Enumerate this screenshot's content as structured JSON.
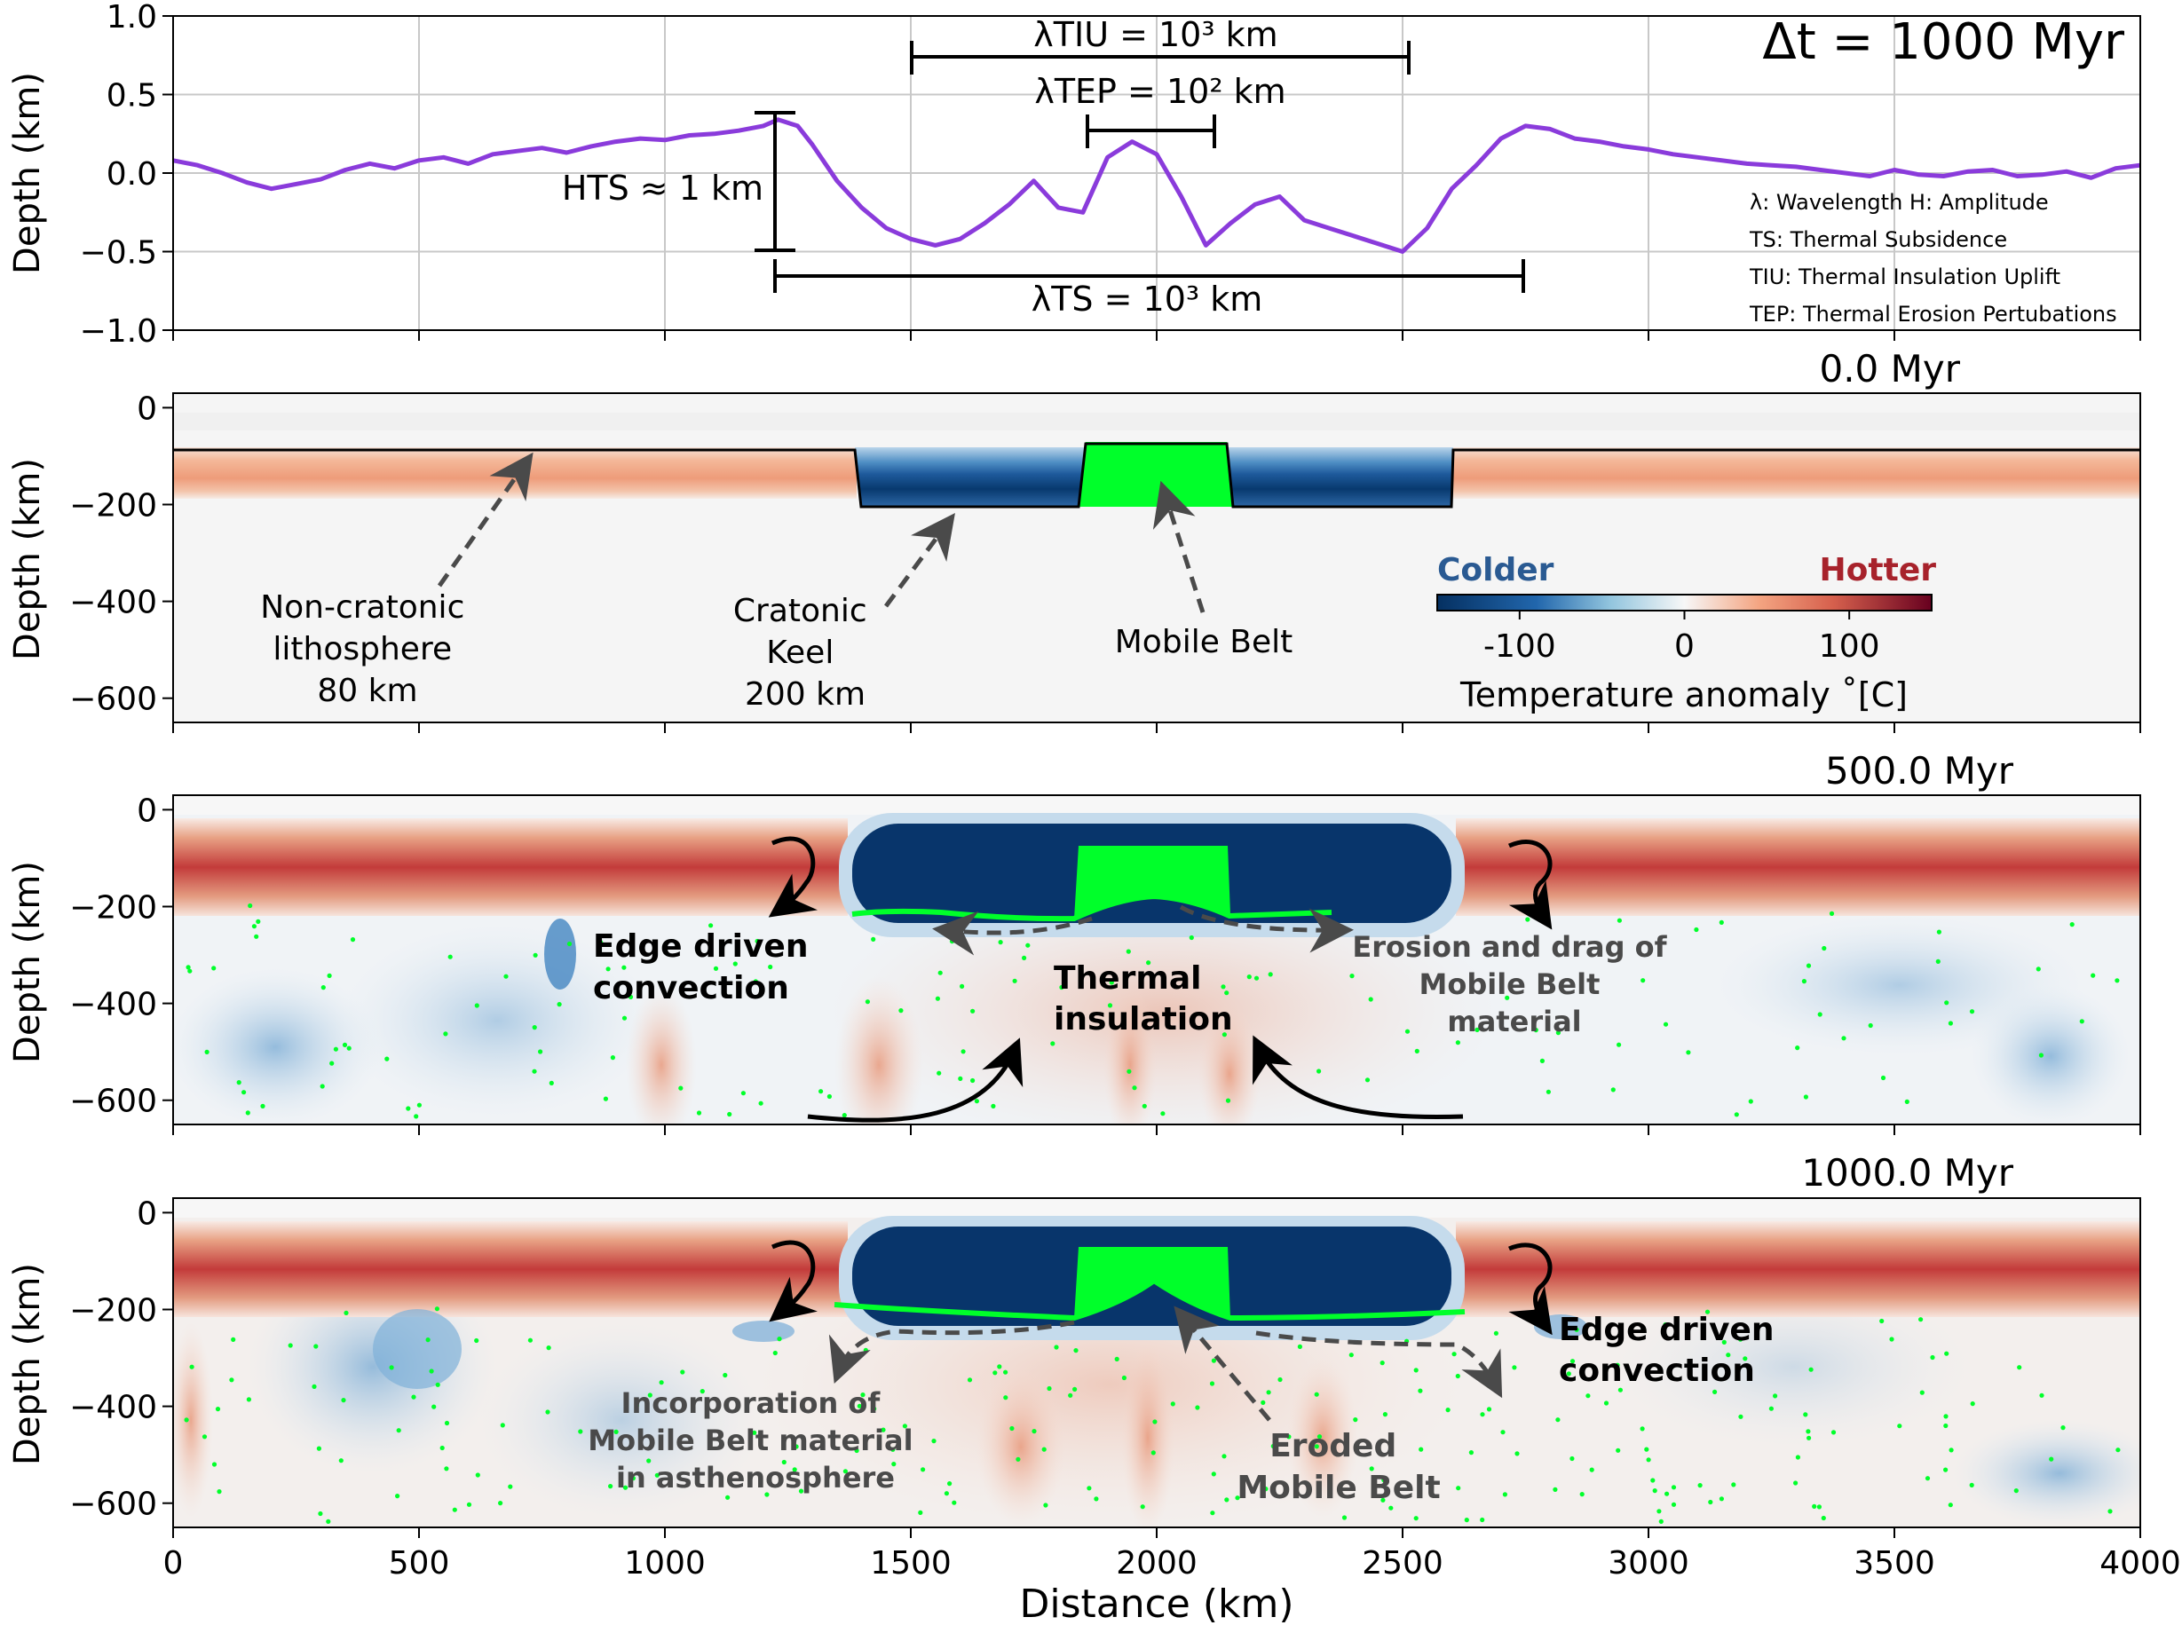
{
  "chart_data": [
    {
      "type": "line",
      "xlim": [
        0,
        4000
      ],
      "ylim": [
        -1.0,
        1.0
      ],
      "ylabel": "Depth (km)",
      "yticks": [
        1.0,
        0.5,
        0.0,
        -0.5,
        -1.0
      ],
      "ytick_labels": [
        "1.0",
        "0.5",
        "0.0",
        "−0.5",
        "−1.0"
      ],
      "xticks": [
        0,
        500,
        1000,
        1500,
        2000,
        2500,
        3000,
        3500,
        4000
      ],
      "grid": true,
      "line_color": "#8a3bdb",
      "x": [
        0,
        50,
        100,
        150,
        200,
        250,
        300,
        350,
        400,
        450,
        500,
        550,
        600,
        650,
        700,
        750,
        800,
        850,
        900,
        950,
        1000,
        1050,
        1100,
        1150,
        1200,
        1230,
        1270,
        1300,
        1350,
        1400,
        1450,
        1500,
        1550,
        1600,
        1650,
        1700,
        1750,
        1800,
        1850,
        1900,
        1950,
        2000,
        2050,
        2100,
        2150,
        2200,
        2250,
        2300,
        2350,
        2400,
        2450,
        2500,
        2550,
        2600,
        2650,
        2700,
        2750,
        2800,
        2850,
        2900,
        2950,
        3000,
        3050,
        3100,
        3150,
        3200,
        3250,
        3300,
        3350,
        3400,
        3450,
        3500,
        3550,
        3600,
        3650,
        3700,
        3750,
        3800,
        3850,
        3900,
        3950,
        4000
      ],
      "y": [
        0.08,
        0.05,
        0.0,
        -0.06,
        -0.1,
        -0.07,
        -0.04,
        0.02,
        0.06,
        0.03,
        0.08,
        0.1,
        0.06,
        0.12,
        0.14,
        0.16,
        0.13,
        0.17,
        0.2,
        0.22,
        0.21,
        0.24,
        0.25,
        0.27,
        0.3,
        0.34,
        0.3,
        0.18,
        -0.05,
        -0.22,
        -0.35,
        -0.42,
        -0.46,
        -0.42,
        -0.32,
        -0.2,
        -0.05,
        -0.22,
        -0.25,
        0.1,
        0.2,
        0.12,
        -0.15,
        -0.46,
        -0.32,
        -0.2,
        -0.15,
        -0.3,
        -0.35,
        -0.4,
        -0.45,
        -0.5,
        -0.35,
        -0.1,
        0.05,
        0.22,
        0.3,
        0.28,
        0.22,
        0.2,
        0.17,
        0.15,
        0.12,
        0.1,
        0.08,
        0.06,
        0.05,
        0.04,
        0.02,
        0.0,
        -0.02,
        0.02,
        -0.01,
        -0.02,
        0.01,
        0.02,
        -0.02,
        -0.01,
        0.01,
        -0.03,
        0.03,
        0.05
      ],
      "annotations": {
        "timestep": "Δt = 1000 Myr",
        "lambda_tiu": "λTIU = 10³ km",
        "lambda_tep": "λTEP = 10² km",
        "h_ts": "HTS ≈ 1 km",
        "lambda_ts": "λTS = 10³ km",
        "legend_lines": [
          "λ: Wavelength H: Amplitude",
          "TS: Thermal Subsidence",
          "TIU: Thermal Insulation Uplift",
          "TEP: Thermal Erosion Pertubations"
        ]
      }
    },
    {
      "type": "heatmap",
      "title": "0.0 Myr",
      "xlim": [
        0,
        4000
      ],
      "ylim": [
        -650,
        30
      ],
      "ylabel": "Depth (km)",
      "yticks": [
        0,
        -200,
        -400,
        -600
      ],
      "ytick_labels": [
        "0",
        "−200",
        "−400",
        "−600"
      ],
      "annotations": [
        "Non-cratonic\nlithosphere\n80 km",
        "Cratonic\nKeel\n200 km",
        "Mobile Belt"
      ],
      "colorbar": {
        "label": "Temperature anomaly ˚[C]",
        "cold_label": "Colder",
        "hot_label": "Hotter",
        "ticks": [
          -100,
          0,
          100
        ],
        "tick_labels": [
          "-100",
          "0",
          "100"
        ],
        "range": [
          -150,
          150
        ],
        "cold_color": "#2a5a92",
        "hot_color": "#a7222b"
      }
    },
    {
      "type": "heatmap",
      "title": "500.0 Myr",
      "xlim": [
        0,
        4000
      ],
      "ylim": [
        -650,
        30
      ],
      "ylabel": "Depth (km)",
      "yticks": [
        0,
        -200,
        -400,
        -600
      ],
      "ytick_labels": [
        "0",
        "−200",
        "−400",
        "−600"
      ],
      "annotations": [
        "Edge driven\nconvection",
        "Thermal\ninsulation",
        "Erosion and drag of\nMobile Belt\nmaterial"
      ]
    },
    {
      "type": "heatmap",
      "title": "1000.0 Myr",
      "xlim": [
        0,
        4000
      ],
      "ylim": [
        -650,
        30
      ],
      "ylabel": "Depth (km)",
      "xlabel": "Distance (km)",
      "yticks": [
        0,
        -200,
        -400,
        -600
      ],
      "ytick_labels": [
        "0",
        "−200",
        "−400",
        "−600"
      ],
      "xticks": [
        0,
        500,
        1000,
        1500,
        2000,
        2500,
        3000,
        3500,
        4000
      ],
      "xtick_labels": [
        "0",
        "500",
        "1000",
        "1500",
        "2000",
        "2500",
        "3000",
        "3500",
        "4000"
      ],
      "annotations": [
        "Incorporation of\nMobile Belt material\nin asthenosphere",
        "Eroded\nMobile Belt",
        "Edge driven\nconvection"
      ]
    }
  ]
}
